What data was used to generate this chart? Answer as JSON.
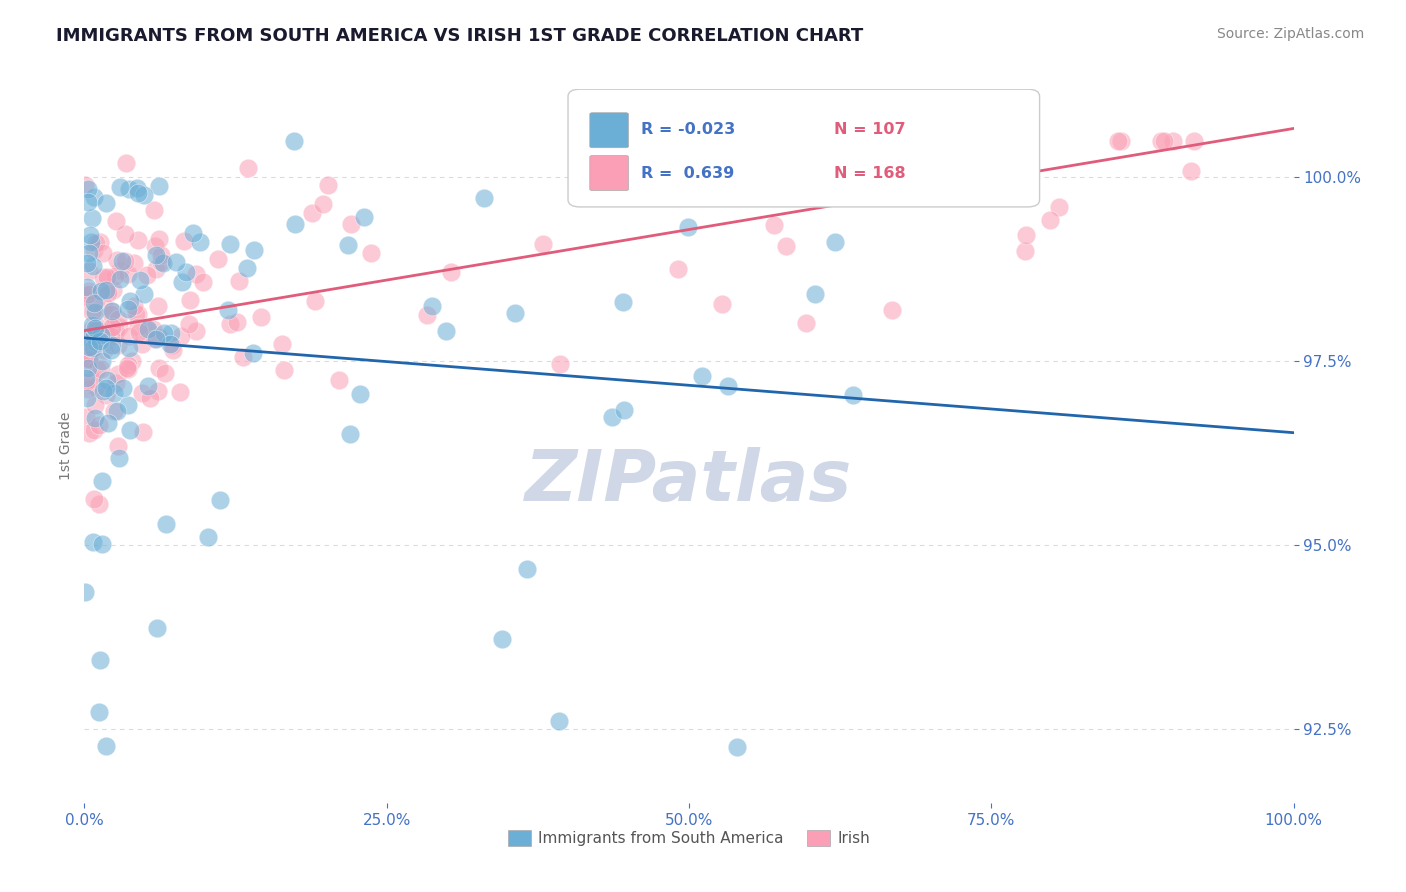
{
  "title": "IMMIGRANTS FROM SOUTH AMERICA VS IRISH 1ST GRADE CORRELATION CHART",
  "source_text": "Source: ZipAtlas.com",
  "xlabel": "",
  "ylabel": "1st Grade",
  "watermark": "ZIPatlas",
  "xlim": [
    0.0,
    100.0
  ],
  "ylim": [
    91.5,
    101.2
  ],
  "yticks": [
    92.5,
    95.0,
    97.5,
    100.0
  ],
  "xticks": [
    0.0,
    25.0,
    50.0,
    75.0,
    100.0
  ],
  "blue_R": -0.023,
  "blue_N": 107,
  "pink_R": 0.639,
  "pink_N": 168,
  "blue_color": "#6baed6",
  "pink_color": "#fa9fb5",
  "blue_line_color": "#2166ac",
  "pink_line_color": "#e05c7a",
  "title_color": "#1a1a2e",
  "axis_color": "#4472c4",
  "grid_color": "#cccccc",
  "watermark_color": "#d0d8e8",
  "seed_blue": 42,
  "seed_pink": 99
}
